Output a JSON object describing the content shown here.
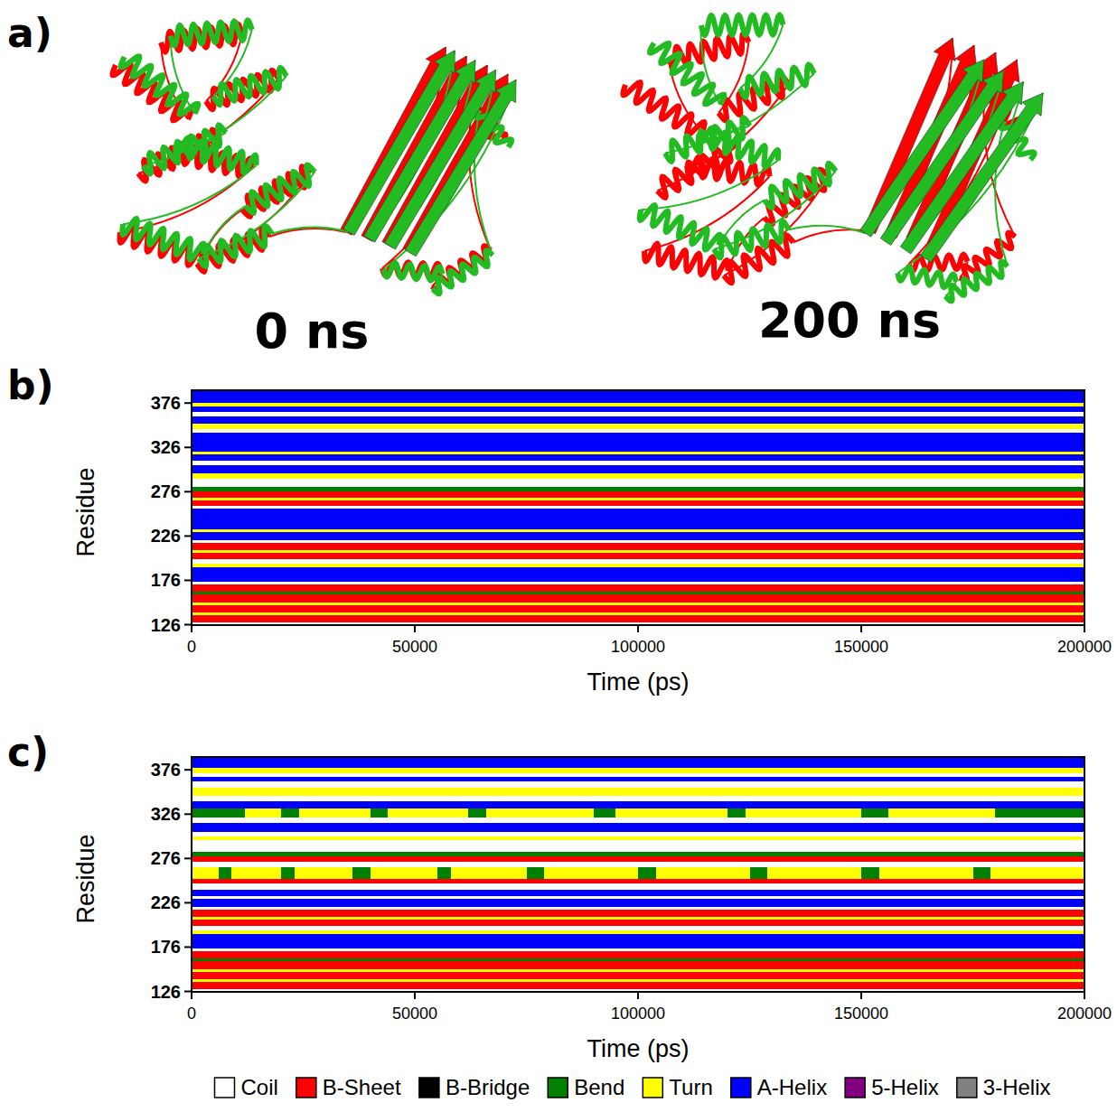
{
  "panel_a": {
    "letter": "a)",
    "structures": [
      {
        "label": "0 ns"
      },
      {
        "label": "200 ns"
      }
    ]
  },
  "legend_key": {
    "items": [
      {
        "name": "Coil",
        "color": "#ffffff"
      },
      {
        "name": "B-Sheet",
        "color": "#ff0000"
      },
      {
        "name": "B-Bridge",
        "color": "#000000"
      },
      {
        "name": "Bend",
        "color": "#008000"
      },
      {
        "name": "Turn",
        "color": "#ffff00"
      },
      {
        "name": "A-Helix",
        "color": "#0000ff"
      },
      {
        "name": "5-Helix",
        "color": "#800080"
      },
      {
        "name": "3-Helix",
        "color": "#808080"
      }
    ]
  },
  "chart_data": [
    {
      "type": "timeline",
      "letter": "b)",
      "x_label": "Time (ps)",
      "y_label": "Residue",
      "xlim": [
        0,
        200000
      ],
      "xticks": [
        0,
        50000,
        100000,
        150000,
        200000
      ],
      "ylim": [
        125.5,
        390.5
      ],
      "yticks": [
        126,
        176,
        226,
        276,
        326,
        376
      ],
      "bands": [
        {
          "residues": [
            126,
            128
          ],
          "state": "Coil"
        },
        {
          "residues": [
            129,
            136
          ],
          "state": "B-Sheet"
        },
        {
          "residues": [
            137,
            139
          ],
          "state": "Turn"
        },
        {
          "residues": [
            140,
            147
          ],
          "state": "B-Sheet"
        },
        {
          "residues": [
            148,
            150
          ],
          "state": "Turn"
        },
        {
          "residues": [
            151,
            160
          ],
          "state": "B-Sheet"
        },
        {
          "residues": [
            161,
            163
          ],
          "state": "Bend"
        },
        {
          "residues": [
            164,
            171
          ],
          "state": "B-Sheet"
        },
        {
          "residues": [
            172,
            174
          ],
          "state": "Coil"
        },
        {
          "residues": [
            175,
            190
          ],
          "state": "A-Helix"
        },
        {
          "residues": [
            191,
            194
          ],
          "state": "Turn"
        },
        {
          "residues": [
            195,
            199
          ],
          "state": "Coil"
        },
        {
          "residues": [
            200,
            207
          ],
          "state": "B-Sheet"
        },
        {
          "residues": [
            208,
            210
          ],
          "state": "Turn"
        },
        {
          "residues": [
            211,
            218
          ],
          "state": "B-Sheet"
        },
        {
          "residues": [
            219,
            221
          ],
          "state": "Coil"
        },
        {
          "residues": [
            222,
            230
          ],
          "state": "A-Helix"
        },
        {
          "residues": [
            231,
            233
          ],
          "state": "Turn"
        },
        {
          "residues": [
            234,
            256
          ],
          "state": "A-Helix"
        },
        {
          "residues": [
            257,
            260
          ],
          "state": "Coil"
        },
        {
          "residues": [
            261,
            266
          ],
          "state": "B-Sheet"
        },
        {
          "residues": [
            267,
            269
          ],
          "state": "Turn"
        },
        {
          "residues": [
            270,
            276
          ],
          "state": "B-Sheet"
        },
        {
          "residues": [
            277,
            281
          ],
          "state": "Bend"
        },
        {
          "residues": [
            282,
            290
          ],
          "state": "Coil"
        },
        {
          "residues": [
            291,
            296
          ],
          "state": "Turn"
        },
        {
          "residues": [
            297,
            305
          ],
          "state": "A-Helix"
        },
        {
          "residues": [
            306,
            310
          ],
          "state": "Coil"
        },
        {
          "residues": [
            311,
            318
          ],
          "state": "A-Helix"
        },
        {
          "residues": [
            319,
            321
          ],
          "state": "Turn"
        },
        {
          "residues": [
            322,
            342
          ],
          "state": "A-Helix"
        },
        {
          "residues": [
            343,
            346
          ],
          "state": "Coil"
        },
        {
          "residues": [
            347,
            352
          ],
          "state": "Turn"
        },
        {
          "residues": [
            353,
            360
          ],
          "state": "A-Helix"
        },
        {
          "residues": [
            361,
            366
          ],
          "state": "Coil"
        },
        {
          "residues": [
            367,
            372
          ],
          "state": "A-Helix"
        },
        {
          "residues": [
            373,
            376
          ],
          "state": "Turn"
        },
        {
          "residues": [
            377,
            390
          ],
          "state": "A-Helix"
        }
      ]
    },
    {
      "type": "timeline",
      "letter": "c)",
      "x_label": "Time (ps)",
      "y_label": "Residue",
      "xlim": [
        0,
        200000
      ],
      "xticks": [
        0,
        50000,
        100000,
        150000,
        200000
      ],
      "ylim": [
        125.5,
        390.5
      ],
      "yticks": [
        126,
        176,
        226,
        276,
        326,
        376
      ],
      "bands": [
        {
          "residues": [
            126,
            128
          ],
          "state": "Coil"
        },
        {
          "residues": [
            129,
            136
          ],
          "state": "B-Sheet"
        },
        {
          "residues": [
            137,
            139
          ],
          "state": "Turn"
        },
        {
          "residues": [
            140,
            147
          ],
          "state": "B-Sheet"
        },
        {
          "residues": [
            148,
            150
          ],
          "state": "Turn"
        },
        {
          "residues": [
            151,
            160
          ],
          "state": "B-Sheet"
        },
        {
          "residues": [
            161,
            163
          ],
          "state": "Bend"
        },
        {
          "residues": [
            164,
            171
          ],
          "state": "B-Sheet"
        },
        {
          "residues": [
            172,
            174
          ],
          "state": "Coil"
        },
        {
          "residues": [
            175,
            190
          ],
          "state": "A-Helix"
        },
        {
          "residues": [
            191,
            194
          ],
          "state": "Turn"
        },
        {
          "residues": [
            195,
            199
          ],
          "state": "Coil"
        },
        {
          "residues": [
            200,
            207
          ],
          "state": "B-Sheet"
        },
        {
          "residues": [
            208,
            210
          ],
          "state": "Turn"
        },
        {
          "residues": [
            211,
            218
          ],
          "state": "B-Sheet"
        },
        {
          "residues": [
            219,
            221
          ],
          "state": "Coil"
        },
        {
          "residues": [
            222,
            230
          ],
          "state": "A-Helix"
        },
        {
          "residues": [
            231,
            233
          ],
          "state": "Coil"
        },
        {
          "residues": [
            234,
            240
          ],
          "state": "A-Helix"
        },
        {
          "residues": [
            241,
            247
          ],
          "state": "Coil"
        },
        {
          "residues": [
            248,
            252
          ],
          "state": "B-Sheet"
        },
        {
          "residues": [
            253,
            266
          ],
          "segments": [
            {
              "times": [
                0,
                6000
              ],
              "state": "Turn"
            },
            {
              "times": [
                6000,
                9000
              ],
              "state": "Bend"
            },
            {
              "times": [
                9000,
                20000
              ],
              "state": "Turn"
            },
            {
              "times": [
                20000,
                23000
              ],
              "state": "Bend"
            },
            {
              "times": [
                23000,
                36000
              ],
              "state": "Turn"
            },
            {
              "times": [
                36000,
                40000
              ],
              "state": "Bend"
            },
            {
              "times": [
                40000,
                55000
              ],
              "state": "Turn"
            },
            {
              "times": [
                55000,
                58000
              ],
              "state": "Bend"
            },
            {
              "times": [
                58000,
                75000
              ],
              "state": "Turn"
            },
            {
              "times": [
                75000,
                79000
              ],
              "state": "Bend"
            },
            {
              "times": [
                79000,
                100000
              ],
              "state": "Turn"
            },
            {
              "times": [
                100000,
                104000
              ],
              "state": "Bend"
            },
            {
              "times": [
                104000,
                125000
              ],
              "state": "Turn"
            },
            {
              "times": [
                125000,
                129000
              ],
              "state": "Bend"
            },
            {
              "times": [
                129000,
                150000
              ],
              "state": "Turn"
            },
            {
              "times": [
                150000,
                154000
              ],
              "state": "Bend"
            },
            {
              "times": [
                154000,
                175000
              ],
              "state": "Turn"
            },
            {
              "times": [
                175000,
                179000
              ],
              "state": "Bend"
            },
            {
              "times": [
                179000,
                200000
              ],
              "state": "Turn"
            }
          ]
        },
        {
          "residues": [
            267,
            272
          ],
          "state": "Coil"
        },
        {
          "residues": [
            273,
            278
          ],
          "state": "B-Sheet"
        },
        {
          "residues": [
            279,
            283
          ],
          "state": "Bend"
        },
        {
          "residues": [
            284,
            296
          ],
          "state": "Coil"
        },
        {
          "residues": [
            297,
            300
          ],
          "state": "Turn"
        },
        {
          "residues": [
            301,
            305
          ],
          "state": "Coil"
        },
        {
          "residues": [
            306,
            316
          ],
          "state": "A-Helix"
        },
        {
          "residues": [
            317,
            322
          ],
          "state": "Coil"
        },
        {
          "residues": [
            323,
            332
          ],
          "segments": [
            {
              "times": [
                0,
                12000
              ],
              "state": "Bend"
            },
            {
              "times": [
                12000,
                20000
              ],
              "state": "Turn"
            },
            {
              "times": [
                20000,
                24000
              ],
              "state": "Bend"
            },
            {
              "times": [
                24000,
                40000
              ],
              "state": "Turn"
            },
            {
              "times": [
                40000,
                44000
              ],
              "state": "Bend"
            },
            {
              "times": [
                44000,
                62000
              ],
              "state": "Turn"
            },
            {
              "times": [
                62000,
                66000
              ],
              "state": "Bend"
            },
            {
              "times": [
                66000,
                90000
              ],
              "state": "Turn"
            },
            {
              "times": [
                90000,
                95000
              ],
              "state": "Bend"
            },
            {
              "times": [
                95000,
                120000
              ],
              "state": "Turn"
            },
            {
              "times": [
                120000,
                124000
              ],
              "state": "Bend"
            },
            {
              "times": [
                124000,
                150000
              ],
              "state": "Turn"
            },
            {
              "times": [
                150000,
                156000
              ],
              "state": "Bend"
            },
            {
              "times": [
                156000,
                180000
              ],
              "state": "Turn"
            },
            {
              "times": [
                180000,
                200000
              ],
              "state": "Bend"
            }
          ]
        },
        {
          "residues": [
            333,
            340
          ],
          "state": "A-Helix"
        },
        {
          "residues": [
            341,
            346
          ],
          "state": "Coil"
        },
        {
          "residues": [
            347,
            355
          ],
          "state": "Turn"
        },
        {
          "residues": [
            356,
            362
          ],
          "state": "Coil"
        },
        {
          "residues": [
            363,
            368
          ],
          "state": "A-Helix"
        },
        {
          "residues": [
            369,
            372
          ],
          "state": "Coil"
        },
        {
          "residues": [
            373,
            378
          ],
          "state": "Turn"
        },
        {
          "residues": [
            379,
            390
          ],
          "state": "A-Helix"
        }
      ]
    }
  ]
}
